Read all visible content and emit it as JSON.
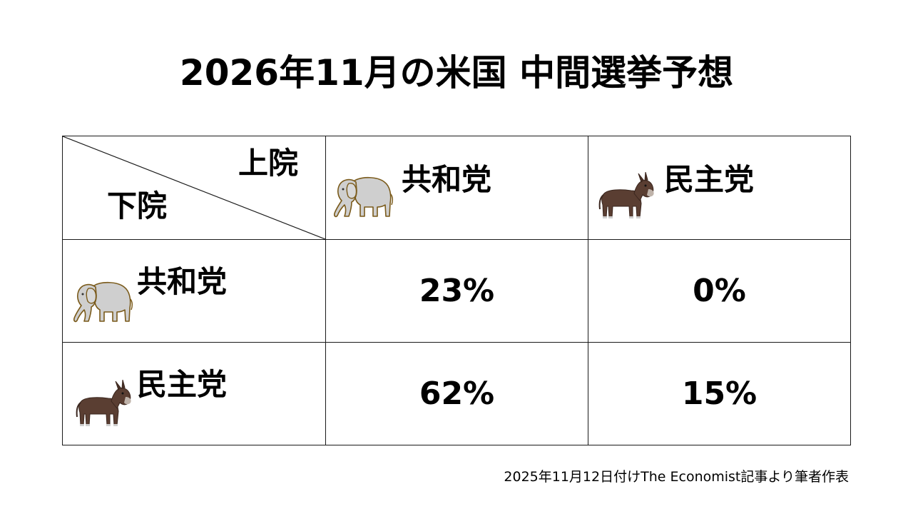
{
  "title": "2026年11月の米国 中間選挙予想",
  "table": {
    "corner": {
      "upper_label": "上院",
      "lower_label": "下院"
    },
    "columns": [
      {
        "label": "共和党",
        "icon": "elephant-icon"
      },
      {
        "label": "民主党",
        "icon": "donkey-icon"
      }
    ],
    "rows": [
      {
        "label": "共和党",
        "icon": "elephant-icon",
        "values": [
          "23%",
          "0%"
        ]
      },
      {
        "label": "民主党",
        "icon": "donkey-icon",
        "values": [
          "62%",
          "15%"
        ]
      }
    ]
  },
  "source": "2025年11月12日付けThe Economist記事より筆者作表",
  "colors": {
    "elephant_fill": "#cfcfcf",
    "elephant_outline": "#7a5a1a",
    "donkey_fill": "#5a3e32",
    "border": "#1a1a1a"
  }
}
